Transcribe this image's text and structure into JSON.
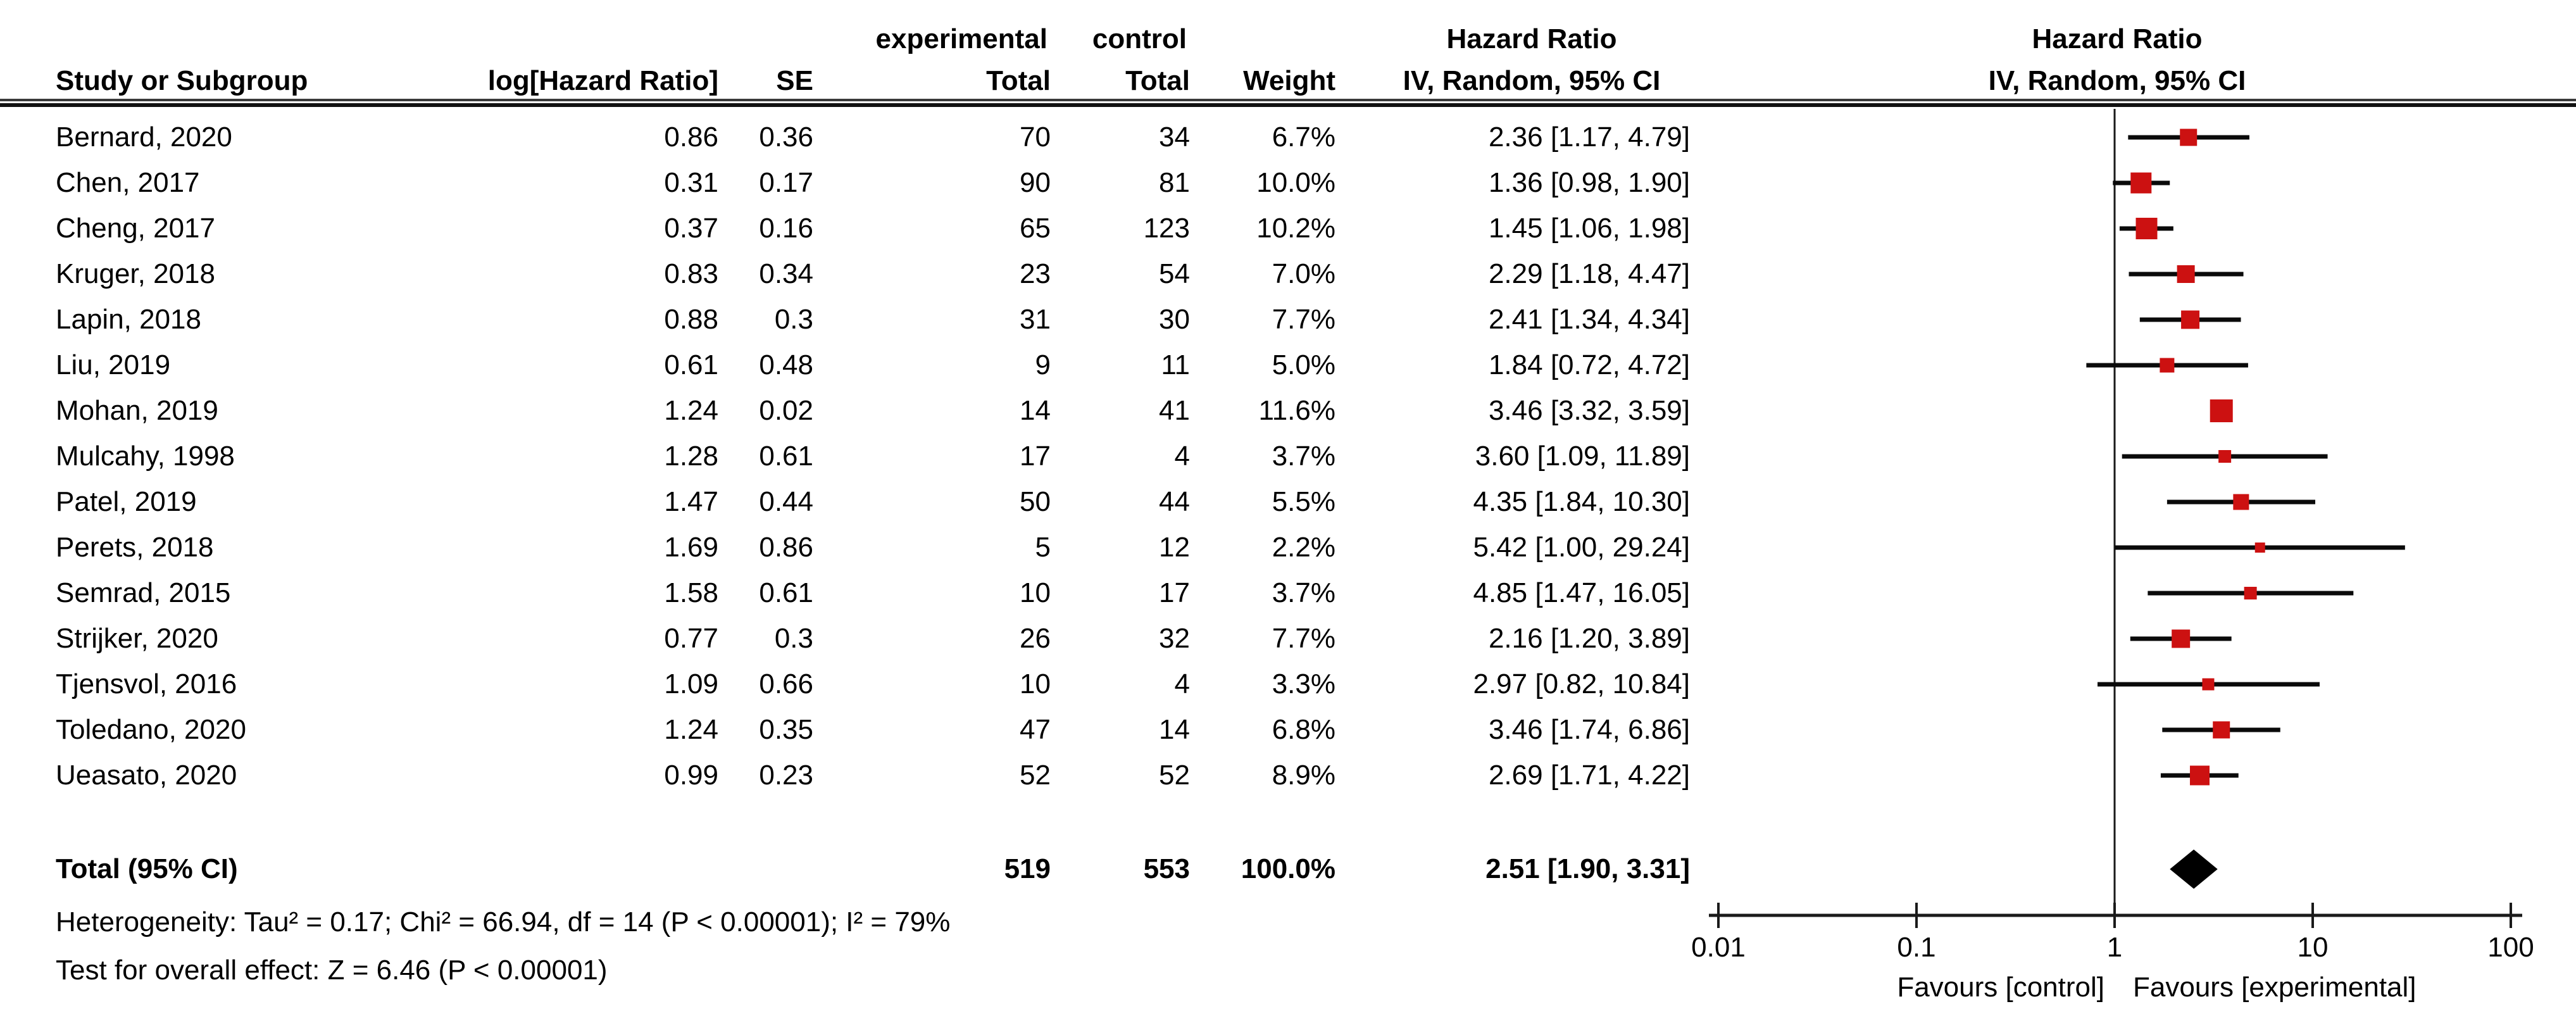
{
  "chart_data": {
    "type": "forest",
    "effect_measure": "Hazard Ratio",
    "model": "IV, Random, 95% CI",
    "columns": {
      "study": "Study or Subgroup",
      "log_hr": "log[Hazard Ratio]",
      "se": "SE",
      "experimental_group": "experimental",
      "control_group": "control",
      "experimental_total": "Total",
      "control_total": "Total",
      "weight": "Weight",
      "hazard_ratio": "Hazard Ratio",
      "iv_random": "IV, Random, 95% CI",
      "hazard_ratio_plot": "Hazard Ratio",
      "iv_random_plot": "IV, Random, 95% CI"
    },
    "studies": [
      {
        "name": "Bernard, 2020",
        "log_hr": "0.86",
        "se": "0.36",
        "experimental_total": "70",
        "control_total": "34",
        "weight": "6.7%",
        "weight_value": 6.7,
        "hr": 2.36,
        "ci_lower": 1.17,
        "ci_upper": 4.79,
        "ci_text": "2.36 [1.17, 4.79]"
      },
      {
        "name": "Chen, 2017",
        "log_hr": "0.31",
        "se": "0.17",
        "experimental_total": "90",
        "control_total": "81",
        "weight": "10.0%",
        "weight_value": 10.0,
        "hr": 1.36,
        "ci_lower": 0.98,
        "ci_upper": 1.9,
        "ci_text": "1.36 [0.98, 1.90]"
      },
      {
        "name": "Cheng, 2017",
        "log_hr": "0.37",
        "se": "0.16",
        "experimental_total": "65",
        "control_total": "123",
        "weight": "10.2%",
        "weight_value": 10.2,
        "hr": 1.45,
        "ci_lower": 1.06,
        "ci_upper": 1.98,
        "ci_text": "1.45 [1.06, 1.98]"
      },
      {
        "name": "Kruger, 2018",
        "log_hr": "0.83",
        "se": "0.34",
        "experimental_total": "23",
        "control_total": "54",
        "weight": "7.0%",
        "weight_value": 7.0,
        "hr": 2.29,
        "ci_lower": 1.18,
        "ci_upper": 4.47,
        "ci_text": "2.29 [1.18, 4.47]"
      },
      {
        "name": "Lapin, 2018",
        "log_hr": "0.88",
        "se": "0.3",
        "experimental_total": "31",
        "control_total": "30",
        "weight": "7.7%",
        "weight_value": 7.7,
        "hr": 2.41,
        "ci_lower": 1.34,
        "ci_upper": 4.34,
        "ci_text": "2.41 [1.34, 4.34]"
      },
      {
        "name": "Liu, 2019",
        "log_hr": "0.61",
        "se": "0.48",
        "experimental_total": "9",
        "control_total": "11",
        "weight": "5.0%",
        "weight_value": 5.0,
        "hr": 1.84,
        "ci_lower": 0.72,
        "ci_upper": 4.72,
        "ci_text": "1.84 [0.72, 4.72]"
      },
      {
        "name": "Mohan, 2019",
        "log_hr": "1.24",
        "se": "0.02",
        "experimental_total": "14",
        "control_total": "41",
        "weight": "11.6%",
        "weight_value": 11.6,
        "hr": 3.46,
        "ci_lower": 3.32,
        "ci_upper": 3.59,
        "ci_text": "3.46 [3.32, 3.59]"
      },
      {
        "name": "Mulcahy, 1998",
        "log_hr": "1.28",
        "se": "0.61",
        "experimental_total": "17",
        "control_total": "4",
        "weight": "3.7%",
        "weight_value": 3.7,
        "hr": 3.6,
        "ci_lower": 1.09,
        "ci_upper": 11.89,
        "ci_text": "3.60 [1.09, 11.89]"
      },
      {
        "name": "Patel, 2019",
        "log_hr": "1.47",
        "se": "0.44",
        "experimental_total": "50",
        "control_total": "44",
        "weight": "5.5%",
        "weight_value": 5.5,
        "hr": 4.35,
        "ci_lower": 1.84,
        "ci_upper": 10.3,
        "ci_text": "4.35 [1.84, 10.30]"
      },
      {
        "name": "Perets, 2018",
        "log_hr": "1.69",
        "se": "0.86",
        "experimental_total": "5",
        "control_total": "12",
        "weight": "2.2%",
        "weight_value": 2.2,
        "hr": 5.42,
        "ci_lower": 1.0,
        "ci_upper": 29.24,
        "ci_text": "5.42 [1.00, 29.24]"
      },
      {
        "name": "Semrad, 2015",
        "log_hr": "1.58",
        "se": "0.61",
        "experimental_total": "10",
        "control_total": "17",
        "weight": "3.7%",
        "weight_value": 3.7,
        "hr": 4.85,
        "ci_lower": 1.47,
        "ci_upper": 16.05,
        "ci_text": "4.85 [1.47, 16.05]"
      },
      {
        "name": "Strijker, 2020",
        "log_hr": "0.77",
        "se": "0.3",
        "experimental_total": "26",
        "control_total": "32",
        "weight": "7.7%",
        "weight_value": 7.7,
        "hr": 2.16,
        "ci_lower": 1.2,
        "ci_upper": 3.89,
        "ci_text": "2.16 [1.20, 3.89]"
      },
      {
        "name": "Tjensvol, 2016",
        "log_hr": "1.09",
        "se": "0.66",
        "experimental_total": "10",
        "control_total": "4",
        "weight": "3.3%",
        "weight_value": 3.3,
        "hr": 2.97,
        "ci_lower": 0.82,
        "ci_upper": 10.84,
        "ci_text": "2.97 [0.82, 10.84]"
      },
      {
        "name": "Toledano, 2020",
        "log_hr": "1.24",
        "se": "0.35",
        "experimental_total": "47",
        "control_total": "14",
        "weight": "6.8%",
        "weight_value": 6.8,
        "hr": 3.46,
        "ci_lower": 1.74,
        "ci_upper": 6.86,
        "ci_text": "3.46 [1.74, 6.86]"
      },
      {
        "name": "Ueasato, 2020",
        "log_hr": "0.99",
        "se": "0.23",
        "experimental_total": "52",
        "control_total": "52",
        "weight": "8.9%",
        "weight_value": 8.9,
        "hr": 2.69,
        "ci_lower": 1.71,
        "ci_upper": 4.22,
        "ci_text": "2.69 [1.71, 4.22]"
      }
    ],
    "total_row": {
      "label": "Total (95% CI)",
      "experimental_total": "519",
      "control_total": "553",
      "weight": "100.0%",
      "hr": 2.51,
      "ci_lower": 1.9,
      "ci_upper": 3.31,
      "ci_text": "2.51 [1.90, 3.31]"
    },
    "footnotes": {
      "heterogeneity": "Heterogeneity: Tau² = 0.17; Chi² = 66.94, df = 14 (P < 0.00001); I² = 79%",
      "overall_effect": "Test for overall effect: Z = 6.46 (P < 0.00001)"
    },
    "axis": {
      "scale": "log10",
      "ticks": [
        0.01,
        0.1,
        1,
        10,
        100
      ],
      "tick_labels": [
        "0.01",
        "0.1",
        "1",
        "10",
        "100"
      ],
      "favours_left": "Favours [control]",
      "favours_right": "Favours [experimental]"
    },
    "colors": {
      "marker": "#CC1111",
      "line": "#0a0a0a",
      "diamond": "#000000",
      "axis": "#1a1a1a"
    }
  }
}
